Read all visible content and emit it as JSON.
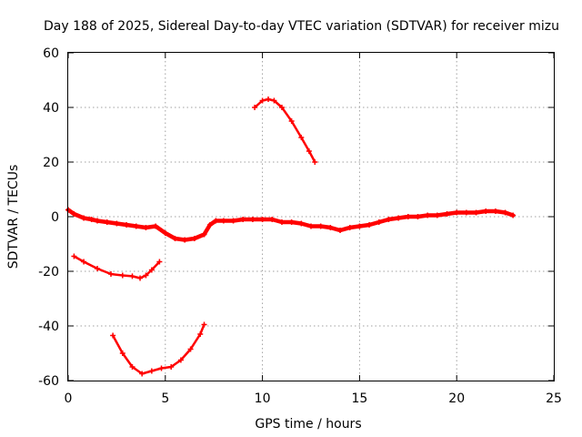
{
  "chart_data": {
    "type": "line",
    "title": "Day 188 of 2025, Sidereal Day-to-day VTEC variation (SDTVAR) for receiver mizu",
    "xlabel": "GPS time / hours",
    "ylabel": "SDTVAR / TECUs",
    "xlim": [
      0,
      25
    ],
    "ylim": [
      -60,
      60
    ],
    "xticks": [
      0,
      5,
      10,
      15,
      20,
      25
    ],
    "yticks": [
      -60,
      -40,
      -20,
      0,
      20,
      40,
      60
    ],
    "grid": true,
    "marker": "+",
    "color": "#ff0000",
    "series": [
      {
        "name": "main-band",
        "width": 4.5,
        "x": [
          0.0,
          0.3,
          0.8,
          1.2,
          1.5,
          2.0,
          2.5,
          3.0,
          3.5,
          4.0,
          4.5,
          5.0,
          5.5,
          6.0,
          6.5,
          7.0,
          7.3,
          7.6,
          8.0,
          8.5,
          9.0,
          9.5,
          10.0,
          10.5,
          11.0,
          11.5,
          12.0,
          12.5,
          13.0,
          13.5,
          14.0,
          14.5,
          15.0,
          15.5,
          16.0,
          16.5,
          17.0,
          17.5,
          18.0,
          18.5,
          19.0,
          19.5,
          20.0,
          20.5,
          21.0,
          21.5,
          22.0,
          22.5,
          22.9
        ],
        "y": [
          2.5,
          1.0,
          -0.5,
          -1.0,
          -1.5,
          -2.0,
          -2.5,
          -3.0,
          -3.5,
          -4.0,
          -3.5,
          -6.0,
          -8.0,
          -8.5,
          -8.0,
          -6.5,
          -3.0,
          -1.5,
          -1.5,
          -1.5,
          -1.0,
          -1.0,
          -1.0,
          -1.0,
          -2.0,
          -2.0,
          -2.5,
          -3.5,
          -3.5,
          -4.0,
          -5.0,
          -4.0,
          -3.5,
          -3.0,
          -2.0,
          -1.0,
          -0.5,
          0.0,
          0.0,
          0.5,
          0.5,
          1.0,
          1.5,
          1.5,
          1.5,
          2.0,
          2.0,
          1.5,
          0.5
        ]
      },
      {
        "name": "hump-arc",
        "width": 2.5,
        "x": [
          9.6,
          10.0,
          10.3,
          10.6,
          11.0,
          11.5,
          12.0,
          12.4,
          12.7
        ],
        "y": [
          40.0,
          42.5,
          43.0,
          42.5,
          40.0,
          35.0,
          29.0,
          24.0,
          20.0
        ]
      },
      {
        "name": "arc-minus-20",
        "width": 2.5,
        "x": [
          0.3,
          0.8,
          1.5,
          2.2,
          2.8,
          3.3,
          3.7,
          4.0,
          4.3,
          4.7
        ],
        "y": [
          -14.5,
          -16.5,
          -19.0,
          -21.0,
          -21.5,
          -21.8,
          -22.5,
          -21.5,
          -19.5,
          -16.5
        ]
      },
      {
        "name": "arc-minus-55",
        "width": 2.5,
        "x": [
          2.3,
          2.8,
          3.3,
          3.8,
          4.3,
          4.8,
          5.3,
          5.8,
          6.3,
          6.8,
          7.0
        ],
        "y": [
          -43.5,
          -50.0,
          -55.0,
          -57.5,
          -56.5,
          -55.5,
          -55.0,
          -52.5,
          -48.5,
          -43.0,
          -39.5
        ]
      }
    ]
  }
}
